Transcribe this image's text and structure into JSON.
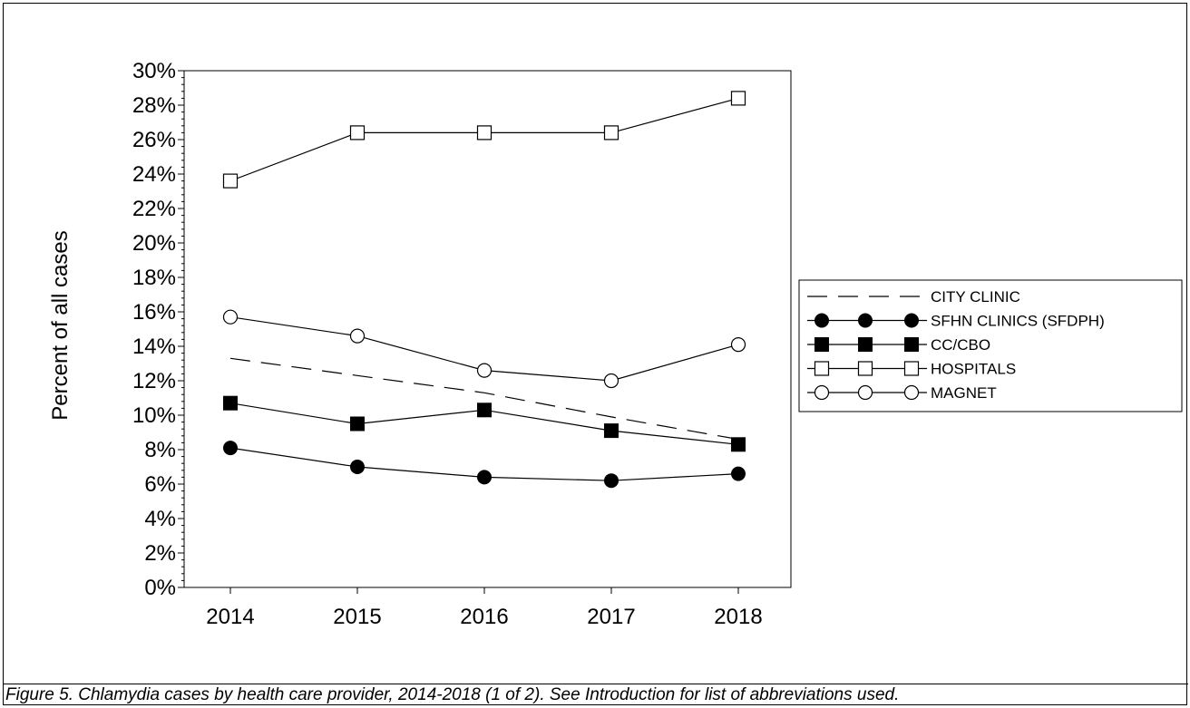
{
  "caption": "Figure 5.  Chlamydia cases by health care provider, 2014-2018 (1 of 2). See Introduction for list of abbreviations used.",
  "chart_data": {
    "type": "line",
    "title": "",
    "xlabel": "",
    "ylabel": "Percent of all cases",
    "categories": [
      "2014",
      "2015",
      "2016",
      "2017",
      "2018"
    ],
    "ylim": [
      0,
      30
    ],
    "yticks": [
      "0%",
      "2%",
      "4%",
      "6%",
      "8%",
      "10%",
      "12%",
      "14%",
      "16%",
      "18%",
      "20%",
      "22%",
      "24%",
      "26%",
      "28%",
      "30%"
    ],
    "grid": false,
    "legend_position": "right",
    "series": [
      {
        "name": "CITY CLINIC",
        "style": "dashed",
        "marker": "none",
        "values": [
          13.3,
          12.3,
          11.3,
          9.9,
          8.6
        ]
      },
      {
        "name": "SFHN CLINICS (SFDPH)",
        "style": "solid",
        "marker": "filled-circle",
        "values": [
          8.1,
          7.0,
          6.4,
          6.2,
          6.6
        ]
      },
      {
        "name": "CC/CBO",
        "style": "solid",
        "marker": "filled-square",
        "values": [
          10.7,
          9.5,
          10.3,
          9.1,
          8.3
        ]
      },
      {
        "name": "HOSPITALS",
        "style": "solid",
        "marker": "open-square",
        "values": [
          23.6,
          26.4,
          26.4,
          26.4,
          28.4
        ]
      },
      {
        "name": "MAGNET",
        "style": "solid",
        "marker": "open-circle",
        "values": [
          15.7,
          14.6,
          12.6,
          12.0,
          14.1
        ]
      }
    ]
  }
}
